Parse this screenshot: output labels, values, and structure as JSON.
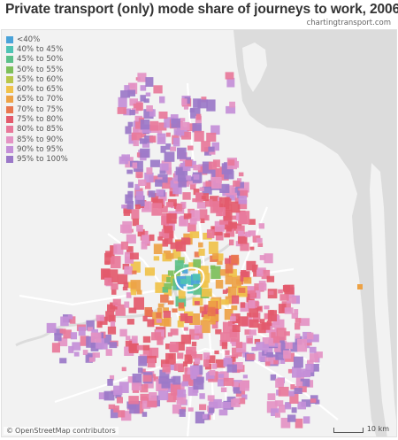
{
  "title": "Private transport (only) mode share of journeys to work, 2006",
  "source": "chartingtransport.com",
  "legend": [
    {
      "label": "<40%",
      "color": "#4aa3d9"
    },
    {
      "label": "40% to 45%",
      "color": "#4fc3b4"
    },
    {
      "label": "45% to 50%",
      "color": "#5bc08a"
    },
    {
      "label": "50% to 55%",
      "color": "#7dbf5a"
    },
    {
      "label": "55% to 60%",
      "color": "#b8c64a"
    },
    {
      "label": "60% to 65%",
      "color": "#f0c24a"
    },
    {
      "label": "65% to 70%",
      "color": "#eda245"
    },
    {
      "label": "70% to 75%",
      "color": "#e9764e"
    },
    {
      "label": "75% to 80%",
      "color": "#e35a6c"
    },
    {
      "label": "80% to 85%",
      "color": "#e8789a"
    },
    {
      "label": "85% to 90%",
      "color": "#e493c4"
    },
    {
      "label": "90% to 95%",
      "color": "#c48fd8"
    },
    {
      "label": "95% to 100%",
      "color": "#9b78c8"
    }
  ],
  "attribution": {
    "symbol": "©",
    "text": "OpenStreetMap contributors"
  },
  "scale": {
    "label": "10 km"
  },
  "map_colors": {
    "water": "#dcdcdc",
    "land": "#f2f2f2",
    "road": "#ffffff"
  }
}
